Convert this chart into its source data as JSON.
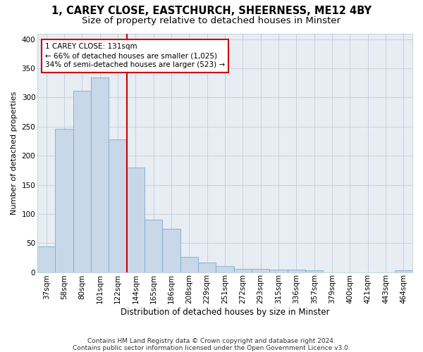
{
  "title1": "1, CAREY CLOSE, EASTCHURCH, SHEERNESS, ME12 4BY",
  "title2": "Size of property relative to detached houses in Minster",
  "xlabel": "Distribution of detached houses by size in Minster",
  "ylabel": "Number of detached properties",
  "categories": [
    "37sqm",
    "58sqm",
    "80sqm",
    "101sqm",
    "122sqm",
    "144sqm",
    "165sqm",
    "186sqm",
    "208sqm",
    "229sqm",
    "251sqm",
    "272sqm",
    "293sqm",
    "315sqm",
    "336sqm",
    "357sqm",
    "379sqm",
    "400sqm",
    "421sqm",
    "443sqm",
    "464sqm"
  ],
  "values": [
    44,
    246,
    312,
    335,
    228,
    180,
    90,
    75,
    26,
    16,
    10,
    5,
    5,
    4,
    4,
    3,
    0,
    0,
    0,
    0,
    3
  ],
  "bar_color": "#c8d8e8",
  "bar_edge_color": "#7aaac8",
  "vline_x_index": 4.5,
  "vline_color": "#cc0000",
  "annotation_line1": "1 CAREY CLOSE: 131sqm",
  "annotation_line2": "← 66% of detached houses are smaller (1,025)",
  "annotation_line3": "34% of semi-detached houses are larger (523) →",
  "annotation_box_color": "#ffffff",
  "annotation_box_edge": "#cc0000",
  "grid_color": "#c0ccd8",
  "bg_color": "#e8edf4",
  "footnote1": "Contains HM Land Registry data © Crown copyright and database right 2024.",
  "footnote2": "Contains public sector information licensed under the Open Government Licence v3.0.",
  "ylim": [
    0,
    410
  ],
  "title1_fontsize": 10.5,
  "title2_fontsize": 9.5,
  "xlabel_fontsize": 8.5,
  "ylabel_fontsize": 8,
  "tick_fontsize": 7.5,
  "annotation_fontsize": 7.5,
  "footnote_fontsize": 6.5
}
